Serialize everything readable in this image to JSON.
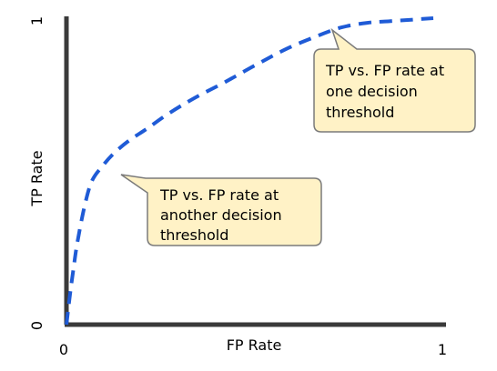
{
  "chart_data": {
    "type": "line",
    "xlabel": "FP Rate",
    "ylabel": "TP Rate",
    "xlim": [
      0,
      1
    ],
    "ylim": [
      0,
      1
    ],
    "x_ticks": [
      "0",
      "1"
    ],
    "y_ticks": [
      "0",
      "1"
    ],
    "grid": false,
    "series": [
      {
        "line_style": "dashed",
        "color": "#1f5bd6",
        "x": [
          0.0,
          0.005,
          0.01,
          0.02,
          0.03,
          0.05,
          0.07,
          0.1,
          0.13,
          0.17,
          0.22,
          0.28,
          0.35,
          0.43,
          0.52,
          0.6,
          0.68,
          0.75,
          0.82,
          0.88,
          0.94,
          1.0
        ],
        "y": [
          0.0,
          0.05,
          0.1,
          0.19,
          0.27,
          0.39,
          0.47,
          0.52,
          0.56,
          0.6,
          0.64,
          0.69,
          0.74,
          0.79,
          0.85,
          0.9,
          0.94,
          0.97,
          0.985,
          0.99,
          0.995,
          1.0
        ]
      }
    ],
    "annotations": [
      {
        "lines": [
          "TP vs. FP rate at",
          "one decision",
          "threshold"
        ],
        "point": [
          0.72,
          0.96
        ]
      },
      {
        "lines": [
          "TP vs. FP rate at",
          "another decision",
          "threshold"
        ],
        "point": [
          0.13,
          0.56
        ]
      }
    ],
    "colors": {
      "curve": "#1f5bd6",
      "axis": "#3a3a3a",
      "callout_fill": "#fff2c6",
      "callout_stroke": "#7a7a7a"
    }
  }
}
